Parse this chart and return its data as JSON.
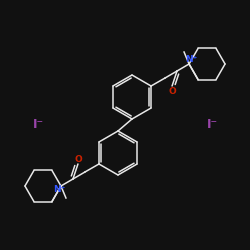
{
  "background_color": "#111111",
  "bond_color": "#e8e8e8",
  "N_color": "#3355ff",
  "O_color": "#cc2200",
  "I_color": "#9944aa",
  "figsize": [
    2.5,
    2.5
  ],
  "dpi": 100,
  "xlim": [
    0,
    250
  ],
  "ylim": [
    0,
    250
  ]
}
